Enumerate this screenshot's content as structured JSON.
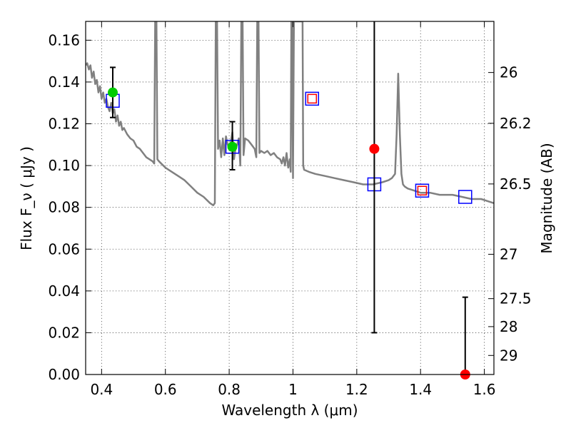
{
  "chart_data": {
    "type": "line",
    "xlabel": "Wavelength  λ (μm)",
    "ylabel": "Flux  F_ν  ( μJy )",
    "ylabel_right": "Magnitude (AB)",
    "xlim": [
      0.35,
      1.63
    ],
    "ylim": [
      0.0,
      0.169
    ],
    "grid": true,
    "x_ticks": [
      0.4,
      0.6,
      0.8,
      1.0,
      1.2,
      1.4,
      1.6
    ],
    "x_tick_labels": [
      "0.4",
      "0.6",
      "0.8",
      "1",
      "1.2",
      "1.4",
      "1.6"
    ],
    "y_ticks": [
      0.0,
      0.02,
      0.04,
      0.06,
      0.08,
      0.1,
      0.12,
      0.14,
      0.16
    ],
    "y_tick_labels": [
      "0.00",
      "0.02",
      "0.04",
      "0.06",
      "0.08",
      "0.10",
      "0.12",
      "0.14",
      "0.16"
    ],
    "right_ticks": [
      {
        "label": "26",
        "mag": 26.0
      },
      {
        "label": "26.2",
        "mag": 26.2
      },
      {
        "label": "26.5",
        "mag": 26.5
      },
      {
        "label": "27",
        "mag": 27.0
      },
      {
        "label": "27.5",
        "mag": 27.5
      },
      {
        "label": "28",
        "mag": 28.0
      },
      {
        "label": "29",
        "mag": 29.0
      }
    ],
    "series": [
      {
        "kind": "spectrum",
        "color": "#808080",
        "x": [
          0.35,
          0.355,
          0.36,
          0.365,
          0.37,
          0.375,
          0.38,
          0.385,
          0.39,
          0.395,
          0.4,
          0.405,
          0.41,
          0.415,
          0.42,
          0.425,
          0.43,
          0.435,
          0.44,
          0.445,
          0.45,
          0.455,
          0.46,
          0.465,
          0.47,
          0.48,
          0.49,
          0.5,
          0.51,
          0.52,
          0.53,
          0.54,
          0.55,
          0.56,
          0.565,
          0.568,
          0.572,
          0.575,
          0.58,
          0.6,
          0.62,
          0.64,
          0.66,
          0.68,
          0.7,
          0.72,
          0.74,
          0.75,
          0.755,
          0.758,
          0.762,
          0.765,
          0.77,
          0.775,
          0.78,
          0.785,
          0.79,
          0.795,
          0.8,
          0.805,
          0.81,
          0.815,
          0.82,
          0.825,
          0.83,
          0.835,
          0.838,
          0.842,
          0.845,
          0.85,
          0.86,
          0.87,
          0.88,
          0.885,
          0.888,
          0.892,
          0.895,
          0.9,
          0.91,
          0.92,
          0.93,
          0.94,
          0.95,
          0.96,
          0.965,
          0.97,
          0.975,
          0.98,
          0.985,
          0.99,
          0.993,
          0.995,
          0.997,
          1.0,
          1.003,
          1.005,
          1.01,
          1.02,
          1.03,
          1.032,
          1.035,
          1.05,
          1.07,
          1.1,
          1.13,
          1.16,
          1.19,
          1.22,
          1.25,
          1.28,
          1.3,
          1.31,
          1.32,
          1.325,
          1.33,
          1.335,
          1.34,
          1.345,
          1.35,
          1.36,
          1.38,
          1.4,
          1.43,
          1.46,
          1.5,
          1.53,
          1.56,
          1.59,
          1.61,
          1.63
        ],
        "y": [
          0.148,
          0.149,
          0.146,
          0.148,
          0.142,
          0.145,
          0.139,
          0.141,
          0.135,
          0.138,
          0.132,
          0.135,
          0.13,
          0.132,
          0.128,
          0.126,
          0.13,
          0.125,
          0.127,
          0.121,
          0.124,
          0.119,
          0.121,
          0.117,
          0.118,
          0.115,
          0.113,
          0.112,
          0.109,
          0.108,
          0.106,
          0.104,
          0.103,
          0.102,
          0.101,
          0.169,
          0.169,
          0.103,
          0.102,
          0.099,
          0.097,
          0.095,
          0.093,
          0.09,
          0.087,
          0.085,
          0.082,
          0.081,
          0.082,
          0.169,
          0.169,
          0.108,
          0.112,
          0.104,
          0.113,
          0.105,
          0.114,
          0.11,
          0.109,
          0.111,
          0.116,
          0.103,
          0.108,
          0.11,
          0.113,
          0.1,
          0.169,
          0.169,
          0.105,
          0.113,
          0.112,
          0.11,
          0.108,
          0.104,
          0.169,
          0.169,
          0.106,
          0.107,
          0.106,
          0.107,
          0.105,
          0.106,
          0.104,
          0.103,
          0.101,
          0.104,
          0.1,
          0.106,
          0.099,
          0.103,
          0.097,
          0.169,
          0.169,
          0.094,
          0.169,
          0.169,
          0.169,
          0.169,
          0.169,
          0.1,
          0.098,
          0.097,
          0.096,
          0.095,
          0.094,
          0.093,
          0.092,
          0.091,
          0.091,
          0.092,
          0.093,
          0.094,
          0.096,
          0.115,
          0.144,
          0.115,
          0.096,
          0.091,
          0.09,
          0.089,
          0.088,
          0.087,
          0.087,
          0.086,
          0.086,
          0.085,
          0.084,
          0.084,
          0.083,
          0.082
        ]
      },
      {
        "kind": "model-photometry",
        "marker": "open-square",
        "color": "#0000ff",
        "x": [
          0.435,
          0.81,
          1.06,
          1.255,
          1.405,
          1.54
        ],
        "y": [
          0.131,
          0.109,
          0.132,
          0.091,
          0.088,
          0.085
        ]
      },
      {
        "kind": "inner-square",
        "marker": "open-square-small",
        "color": "#ff0000",
        "x": [
          1.06,
          1.405
        ],
        "y": [
          0.132,
          0.088
        ]
      },
      {
        "kind": "detections",
        "marker": "filled-circle",
        "color": "#00cc00",
        "points": [
          {
            "x": 0.435,
            "y": 0.135,
            "err_low": 0.123,
            "err_high": 0.147
          },
          {
            "x": 0.81,
            "y": 0.109,
            "err_low": 0.098,
            "err_high": 0.121
          }
        ]
      },
      {
        "kind": "red-measurements",
        "marker": "filled-circle",
        "color": "#ff0000",
        "points": [
          {
            "x": 1.255,
            "y": 0.108,
            "err_low": 0.02,
            "err_high": 0.169
          },
          {
            "x": 1.54,
            "y": 0.0,
            "err_low": 0.0,
            "err_high": 0.037
          }
        ]
      }
    ]
  }
}
